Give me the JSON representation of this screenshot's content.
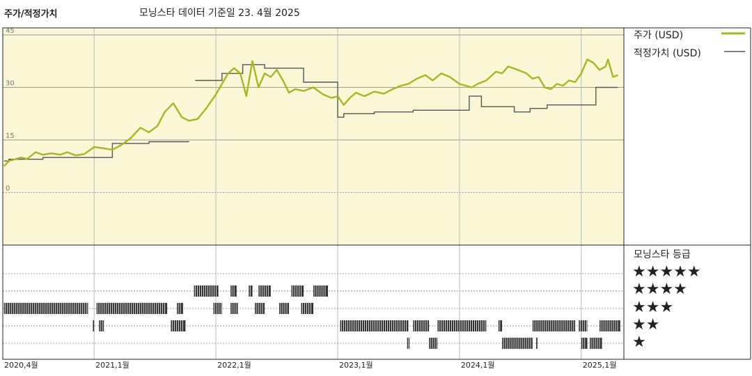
{
  "header": {
    "title": "주가/적정가치",
    "subtitle": "모닝스타 데이터 기준일 23. 4월 2025"
  },
  "legend": {
    "price_label": "주가 (USD)",
    "fair_label": "적정가치 (USD)",
    "rating_title": "모닝스타 등급",
    "stars": [
      "★★★★★",
      "★★★★",
      "★★★",
      "★★",
      "★"
    ]
  },
  "colors": {
    "price": "#a9b521",
    "fair": "#555555",
    "panel_bg": "#faf6d6",
    "rating_bar": "#333333"
  },
  "chart_data": {
    "type": "line",
    "title": "주가/적정가치",
    "x_tick_labels": [
      "2020,4월",
      "2021,1월",
      "2022,1월",
      "2023,1월",
      "2024,1월",
      "2025,1월"
    ],
    "x_tick_dates": [
      2020.25,
      2021.0,
      2022.0,
      2023.0,
      2024.0,
      2025.0
    ],
    "xlim": [
      2020.25,
      2025.35
    ],
    "y_tick_labels": [
      "45",
      "30",
      "15",
      "0"
    ],
    "y_tick_values": [
      45,
      30,
      15,
      0
    ],
    "ylim": [
      -15,
      47
    ],
    "grid": true,
    "series": [
      {
        "name": "주가 (USD)",
        "points": [
          [
            2020.26,
            7.5
          ],
          [
            2020.3,
            9.0
          ],
          [
            2020.35,
            9.5
          ],
          [
            2020.4,
            10.0
          ],
          [
            2020.45,
            9.6
          ],
          [
            2020.52,
            11.5
          ],
          [
            2020.58,
            10.8
          ],
          [
            2020.65,
            11.2
          ],
          [
            2020.72,
            10.8
          ],
          [
            2020.78,
            11.5
          ],
          [
            2020.85,
            10.6
          ],
          [
            2020.92,
            11.0
          ],
          [
            2021.0,
            13.0
          ],
          [
            2021.08,
            12.6
          ],
          [
            2021.15,
            12.2
          ],
          [
            2021.22,
            13.5
          ],
          [
            2021.3,
            15.5
          ],
          [
            2021.38,
            18.5
          ],
          [
            2021.45,
            17.2
          ],
          [
            2021.52,
            19.0
          ],
          [
            2021.58,
            23.0
          ],
          [
            2021.65,
            25.5
          ],
          [
            2021.72,
            21.5
          ],
          [
            2021.78,
            20.5
          ],
          [
            2021.85,
            21.0
          ],
          [
            2021.92,
            24.0
          ],
          [
            2022.0,
            28.0
          ],
          [
            2022.05,
            31.0
          ],
          [
            2022.1,
            34.0
          ],
          [
            2022.15,
            35.5
          ],
          [
            2022.2,
            34.0
          ],
          [
            2022.25,
            27.5
          ],
          [
            2022.3,
            37.5
          ],
          [
            2022.35,
            30.0
          ],
          [
            2022.4,
            34.0
          ],
          [
            2022.45,
            33.0
          ],
          [
            2022.5,
            35.0
          ],
          [
            2022.55,
            32.0
          ],
          [
            2022.6,
            28.5
          ],
          [
            2022.65,
            29.5
          ],
          [
            2022.72,
            29.0
          ],
          [
            2022.8,
            30.0
          ],
          [
            2022.88,
            28.0
          ],
          [
            2022.95,
            27.0
          ],
          [
            2023.0,
            27.5
          ],
          [
            2023.05,
            25.0
          ],
          [
            2023.1,
            27.0
          ],
          [
            2023.15,
            28.5
          ],
          [
            2023.22,
            27.5
          ],
          [
            2023.3,
            28.8
          ],
          [
            2023.38,
            28.2
          ],
          [
            2023.45,
            29.5
          ],
          [
            2023.52,
            30.5
          ],
          [
            2023.58,
            31.0
          ],
          [
            2023.65,
            32.5
          ],
          [
            2023.72,
            33.5
          ],
          [
            2023.78,
            32.0
          ],
          [
            2023.85,
            34.0
          ],
          [
            2023.92,
            33.0
          ],
          [
            2024.0,
            31.0
          ],
          [
            2024.05,
            30.5
          ],
          [
            2024.1,
            30.0
          ],
          [
            2024.15,
            31.0
          ],
          [
            2024.22,
            32.0
          ],
          [
            2024.3,
            34.5
          ],
          [
            2024.35,
            34.0
          ],
          [
            2024.4,
            36.0
          ],
          [
            2024.48,
            35.0
          ],
          [
            2024.55,
            34.0
          ],
          [
            2024.6,
            32.5
          ],
          [
            2024.65,
            33.0
          ],
          [
            2024.7,
            30.0
          ],
          [
            2024.75,
            29.5
          ],
          [
            2024.8,
            31.0
          ],
          [
            2024.85,
            30.5
          ],
          [
            2024.9,
            32.0
          ],
          [
            2024.95,
            31.5
          ],
          [
            2025.0,
            34.0
          ],
          [
            2025.05,
            38.0
          ],
          [
            2025.1,
            37.0
          ],
          [
            2025.15,
            35.0
          ],
          [
            2025.2,
            36.0
          ],
          [
            2025.22,
            38.0
          ],
          [
            2025.26,
            33.0
          ],
          [
            2025.3,
            33.5
          ]
        ]
      },
      {
        "name": "적정가치 (USD)",
        "points": [
          [
            2020.26,
            9.0
          ],
          [
            2020.3,
            9.0
          ],
          [
            2020.3,
            9.5
          ],
          [
            2020.58,
            9.5
          ],
          [
            2020.58,
            10.0
          ],
          [
            2021.15,
            10.0
          ],
          [
            2021.15,
            14.0
          ],
          [
            2021.45,
            14.0
          ],
          [
            2021.45,
            14.5
          ],
          [
            2021.78,
            14.5
          ],
          [
            2021.83,
            null
          ],
          [
            2021.83,
            32.0
          ],
          [
            2022.05,
            32.0
          ],
          [
            2022.05,
            34.0
          ],
          [
            2022.22,
            34.0
          ],
          [
            2022.22,
            36.5
          ],
          [
            2022.4,
            36.5
          ],
          [
            2022.4,
            35.5
          ],
          [
            2022.72,
            35.5
          ],
          [
            2022.72,
            31.5
          ],
          [
            2023.0,
            31.5
          ],
          [
            2023.0,
            21.5
          ],
          [
            2023.05,
            21.5
          ],
          [
            2023.05,
            22.5
          ],
          [
            2023.3,
            22.5
          ],
          [
            2023.3,
            23.0
          ],
          [
            2023.62,
            23.0
          ],
          [
            2023.62,
            23.5
          ],
          [
            2024.08,
            23.5
          ],
          [
            2024.08,
            27.5
          ],
          [
            2024.18,
            27.5
          ],
          [
            2024.18,
            24.5
          ],
          [
            2024.45,
            24.5
          ],
          [
            2024.45,
            23.0
          ],
          [
            2024.58,
            23.0
          ],
          [
            2024.58,
            24.0
          ],
          [
            2024.72,
            24.0
          ],
          [
            2024.72,
            25.0
          ],
          [
            2025.12,
            25.0
          ],
          [
            2025.12,
            30.0
          ],
          [
            2025.3,
            30.0
          ]
        ]
      }
    ],
    "ratings": {
      "levels": [
        "★★★★★",
        "★★★★",
        "★★★",
        "★★",
        "★"
      ],
      "segments": [
        {
          "stars": 3,
          "ranges": [
            [
              2020.26,
              2020.95
            ],
            [
              2021.02,
              2021.6
            ],
            [
              2021.68,
              2021.73
            ],
            [
              2021.98,
              2022.05
            ],
            [
              2022.12,
              2022.18
            ],
            [
              2022.32,
              2022.4
            ],
            [
              2022.52,
              2022.6
            ],
            [
              2022.7,
              2022.8
            ]
          ]
        },
        {
          "stars": 4,
          "ranges": [
            [
              2021.82,
              2022.02
            ],
            [
              2022.12,
              2022.17
            ],
            [
              2022.27,
              2022.3
            ],
            [
              2022.35,
              2022.45
            ],
            [
              2022.62,
              2022.72
            ],
            [
              2022.8,
              2022.92
            ]
          ]
        },
        {
          "stars": 2,
          "ranges": [
            [
              2020.99,
              2021.0
            ],
            [
              2021.04,
              2021.08
            ],
            [
              2021.63,
              2021.75
            ],
            [
              2023.02,
              2023.58
            ],
            [
              2023.62,
              2023.75
            ],
            [
              2023.82,
              2024.22
            ],
            [
              2024.32,
              2024.35
            ],
            [
              2024.6,
              2024.95
            ],
            [
              2024.98,
              2025.05
            ],
            [
              2025.15,
              2025.32
            ]
          ]
        },
        {
          "stars": 1,
          "ranges": [
            [
              2023.57,
              2023.59
            ],
            [
              2023.75,
              2023.82
            ],
            [
              2024.35,
              2024.6
            ],
            [
              2024.63,
              2024.64
            ],
            [
              2025.0,
              2025.05
            ],
            [
              2025.07,
              2025.17
            ]
          ]
        }
      ]
    }
  }
}
